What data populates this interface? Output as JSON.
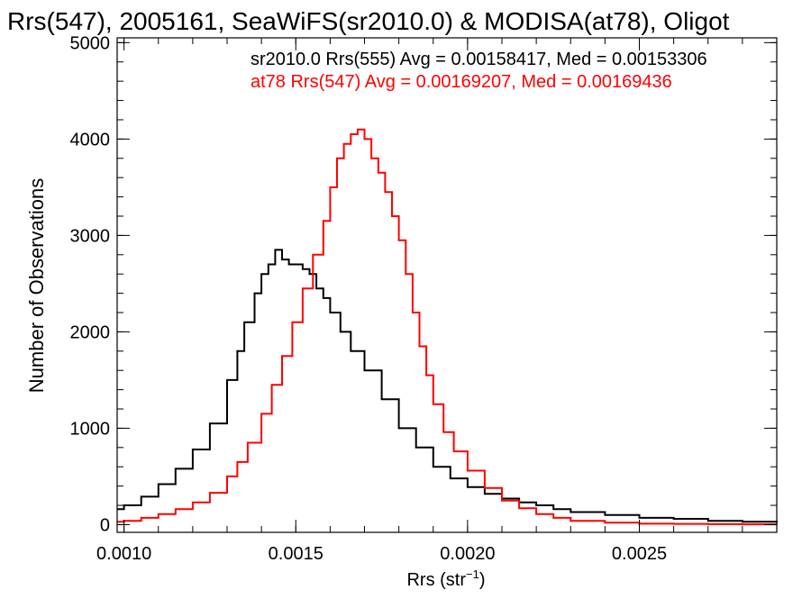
{
  "chart_data": {
    "type": "line",
    "title": "Rrs(547), 2005161, SeaWiFS(sr2010.0) & MODISA(at78), Oligot",
    "xlabel": "Rrs (str",
    "xlabel_sup": "−1",
    "xlabel_end": ")",
    "ylabel": "Number of Observations",
    "xlim": [
      0.00098,
      0.0029
    ],
    "ylim": [
      -80,
      5050
    ],
    "x_ticks": [
      0.001,
      0.0015,
      0.002,
      0.0025
    ],
    "x_tick_labels": [
      "0.0010",
      "0.0015",
      "0.0020",
      "0.0025"
    ],
    "y_ticks": [
      0,
      1000,
      2000,
      3000,
      4000,
      5000
    ],
    "y_tick_labels": [
      "0",
      "1000",
      "2000",
      "3000",
      "4000",
      "5000"
    ],
    "grid": false,
    "legend_placement": "top-right",
    "series": [
      {
        "label": "sr2010.0 Rrs(555) Avg = 0.00158417, Med = 0.00153306",
        "color": "#000000",
        "style": "step",
        "x": [
          0.00098,
          0.001,
          0.00105,
          0.0011,
          0.00115,
          0.0012,
          0.00125,
          0.0013,
          0.00133,
          0.00135,
          0.00138,
          0.0014,
          0.00142,
          0.00144,
          0.00146,
          0.00148,
          0.0015,
          0.00152,
          0.00154,
          0.00156,
          0.00158,
          0.0016,
          0.00163,
          0.00166,
          0.0017,
          0.00175,
          0.0018,
          0.00185,
          0.0019,
          0.00195,
          0.002,
          0.00205,
          0.0021,
          0.00215,
          0.0022,
          0.00225,
          0.0023,
          0.0024,
          0.0025,
          0.0026,
          0.0027,
          0.0028,
          0.0029
        ],
        "y": [
          160,
          200,
          290,
          420,
          580,
          780,
          1050,
          1500,
          1800,
          2100,
          2400,
          2600,
          2700,
          2850,
          2750,
          2700,
          2700,
          2650,
          2600,
          2450,
          2350,
          2200,
          2000,
          1800,
          1600,
          1300,
          1000,
          800,
          600,
          480,
          390,
          320,
          270,
          230,
          200,
          160,
          130,
          100,
          70,
          60,
          40,
          30,
          20
        ]
      },
      {
        "label": "at78 Rrs(547) Avg = 0.00169207, Med = 0.00169436",
        "color": "#ff0000",
        "style": "step",
        "x": [
          0.00098,
          0.001,
          0.00105,
          0.0011,
          0.00115,
          0.0012,
          0.00125,
          0.0013,
          0.00133,
          0.00136,
          0.0014,
          0.00143,
          0.00146,
          0.00149,
          0.00152,
          0.00155,
          0.00158,
          0.0016,
          0.00162,
          0.00164,
          0.00166,
          0.00168,
          0.0017,
          0.00172,
          0.00174,
          0.00176,
          0.00178,
          0.0018,
          0.00182,
          0.00184,
          0.00186,
          0.00188,
          0.0019,
          0.00193,
          0.00196,
          0.002,
          0.00205,
          0.0021,
          0.00215,
          0.0022,
          0.00225,
          0.0023,
          0.0024,
          0.0025,
          0.0026,
          0.0027,
          0.0028,
          0.0029
        ],
        "y": [
          30,
          40,
          70,
          110,
          160,
          230,
          330,
          500,
          650,
          850,
          1150,
          1450,
          1750,
          2100,
          2450,
          2800,
          3150,
          3500,
          3800,
          3950,
          4050,
          4100,
          4000,
          3800,
          3650,
          3450,
          3200,
          2950,
          2600,
          2200,
          1850,
          1550,
          1250,
          960,
          760,
          560,
          380,
          250,
          170,
          110,
          70,
          40,
          20,
          10,
          8,
          5,
          3,
          2
        ]
      }
    ]
  }
}
